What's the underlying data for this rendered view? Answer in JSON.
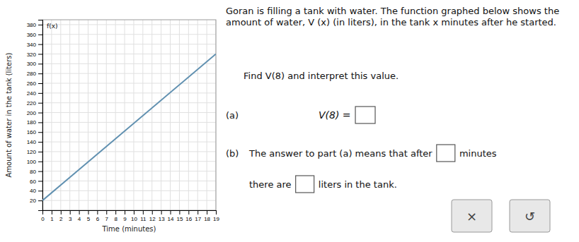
{
  "chart_data": {
    "type": "line",
    "title": "Goran is filling a tank with water. The function graphed below shows the amount of water, V (x) (in liters), in the tank x minutes after he started.",
    "xlabel": "Time (minutes)",
    "ylabel": "Amount of water in the tank (liters)",
    "x": [
      0,
      19
    ],
    "values": [
      20,
      320
    ],
    "color": "#6090b0",
    "xlim": [
      0,
      19
    ],
    "ylim": [
      0,
      390
    ],
    "xticks": [
      0,
      1,
      2,
      3,
      4,
      5,
      6,
      7,
      8,
      9,
      10,
      11,
      12,
      13,
      14,
      15,
      16,
      17,
      18,
      19
    ],
    "yticks": [
      20,
      40,
      60,
      80,
      100,
      120,
      140,
      160,
      180,
      200,
      220,
      240,
      260,
      280,
      300,
      320,
      340,
      360,
      380
    ],
    "grid": true,
    "annotations": [
      "f(x)",
      "Find V(8) and interpret this value.",
      "(a)",
      "V(8) = ",
      "(b)",
      "The answer to part (a) means that after ",
      " minutes",
      "there are ",
      " liters in the tank.",
      "×",
      "↺"
    ]
  }
}
